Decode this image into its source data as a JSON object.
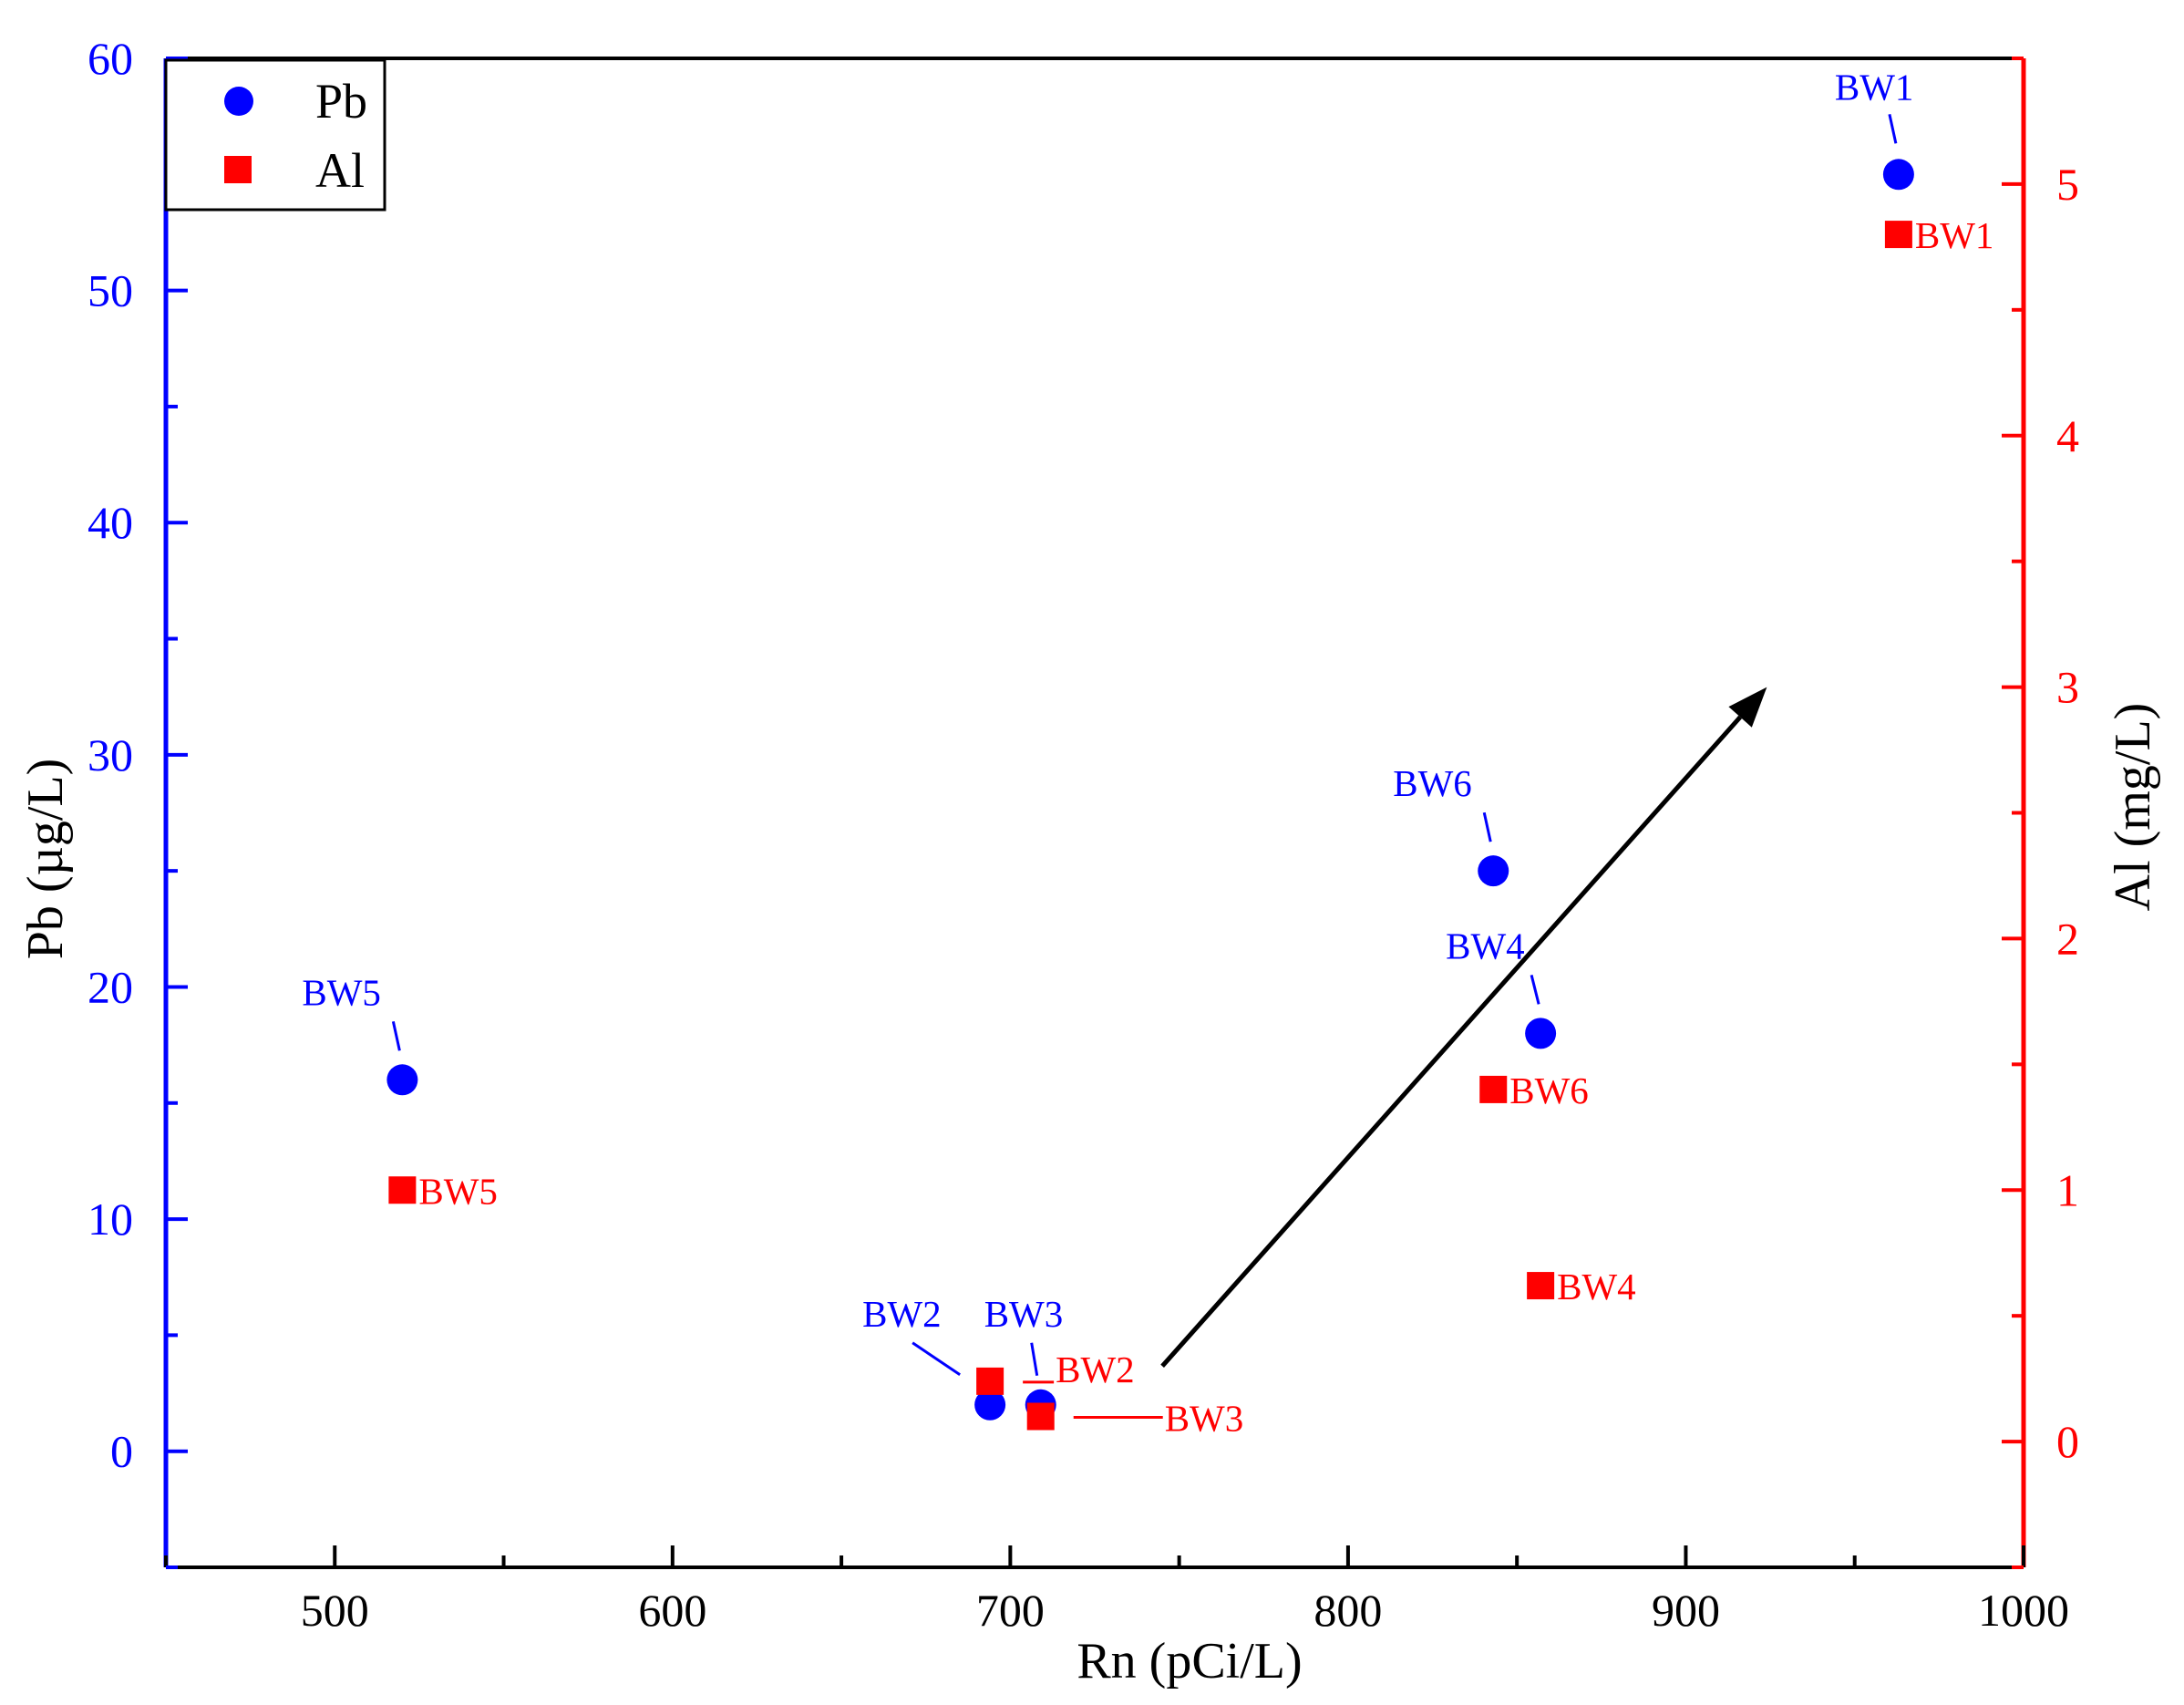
{
  "chart_data": {
    "type": "scatter",
    "xlabel": "Rn (pCi/L)",
    "ylabel_left": "Pb (µg/L)",
    "ylabel_right": "Al (mg/L)",
    "xlim": [
      450,
      1000
    ],
    "ylim_left": [
      -5,
      60
    ],
    "ylim_right": [
      -0.5,
      5.5
    ],
    "x_ticks": [
      500,
      600,
      700,
      800,
      900,
      1000
    ],
    "y_left_ticks": [
      0,
      10,
      20,
      30,
      40,
      50,
      60
    ],
    "y_right_ticks": [
      0,
      1,
      2,
      3,
      4,
      5
    ],
    "grid": false,
    "legend_position": "top-left",
    "colors": {
      "pb": "#0000ff",
      "al": "#ff0000",
      "frame": "#000000"
    },
    "series": [
      {
        "name": "Pb",
        "axis": "left",
        "marker": "circle",
        "points": [
          {
            "label": "BW1",
            "x": 963,
            "y": 55
          },
          {
            "label": "BW2",
            "x": 694,
            "y": 2
          },
          {
            "label": "BW3",
            "x": 709,
            "y": 2
          },
          {
            "label": "BW4",
            "x": 857,
            "y": 18
          },
          {
            "label": "BW5",
            "x": 520,
            "y": 16
          },
          {
            "label": "BW6",
            "x": 843,
            "y": 25
          }
        ]
      },
      {
        "name": "Al",
        "axis": "right",
        "marker": "square",
        "points": [
          {
            "label": "BW1",
            "x": 963,
            "y": 4.8
          },
          {
            "label": "BW2",
            "x": 694,
            "y": 0.24
          },
          {
            "label": "BW3",
            "x": 709,
            "y": 0.1
          },
          {
            "label": "BW4",
            "x": 857,
            "y": 0.62
          },
          {
            "label": "BW5",
            "x": 520,
            "y": 1.0
          },
          {
            "label": "BW6",
            "x": 843,
            "y": 1.4
          }
        ]
      }
    ],
    "annotations": [
      {
        "type": "arrow",
        "from": {
          "x": 745,
          "y_right": 0.3
        },
        "to": {
          "x": 924,
          "y_right": 3.0
        }
      }
    ]
  }
}
